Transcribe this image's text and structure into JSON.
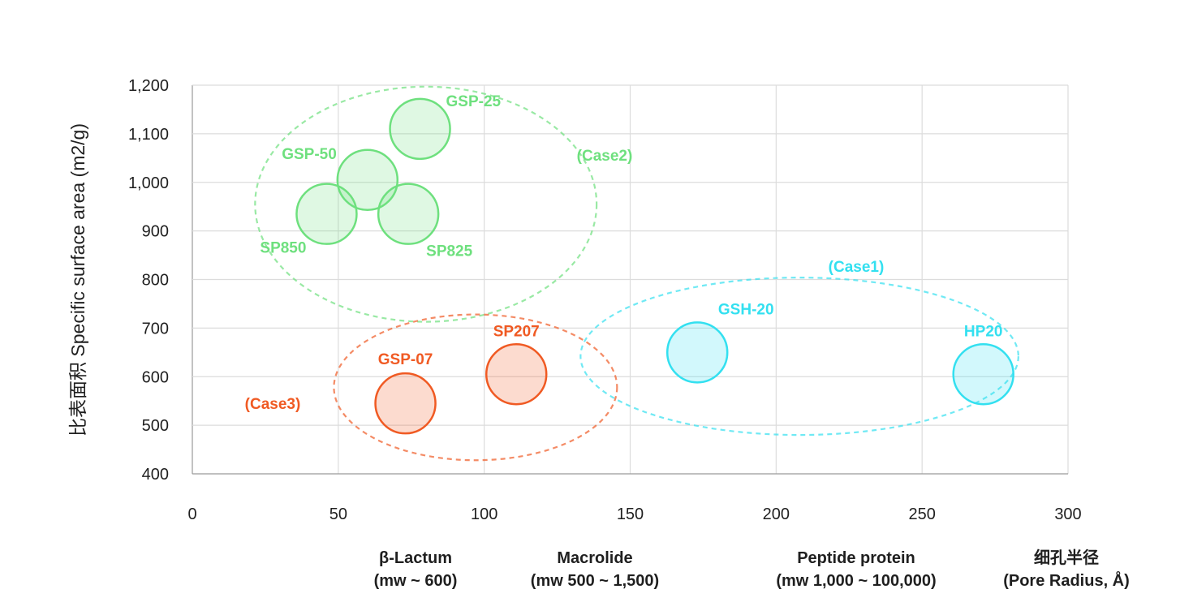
{
  "chart_data": {
    "type": "scatter",
    "ylabel": "比表面积  Specific surface area (m2/g)",
    "xlim": [
      0,
      300
    ],
    "ylim": [
      400,
      1200
    ],
    "x_ticks": [
      "0",
      "50",
      "100",
      "150",
      "200",
      "250",
      "300"
    ],
    "y_ticks": [
      "400",
      "500",
      "600",
      "700",
      "800",
      "900",
      "1,000",
      "1,100",
      "1,200"
    ],
    "grid": true,
    "colors": {
      "case1": "#33e0f0",
      "case2": "#6ee07e",
      "case3": "#f05a23"
    },
    "points": [
      {
        "name": "GSP-25",
        "x": 78,
        "y": 1110,
        "group": "case2"
      },
      {
        "name": "GSP-50",
        "x": 60,
        "y": 1005,
        "group": "case2"
      },
      {
        "name": "SP850",
        "x": 46,
        "y": 935,
        "group": "case2"
      },
      {
        "name": "SP825",
        "x": 74,
        "y": 935,
        "group": "case2"
      },
      {
        "name": "GSP-07",
        "x": 73,
        "y": 545,
        "group": "case3"
      },
      {
        "name": "SP207",
        "x": 111,
        "y": 605,
        "group": "case3"
      },
      {
        "name": "GSH-20",
        "x": 173,
        "y": 650,
        "group": "case1"
      },
      {
        "name": "HP20",
        "x": 271,
        "y": 605,
        "group": "case1"
      }
    ],
    "annotations": [
      {
        "text": "(Case2)",
        "group": "case2"
      },
      {
        "text": "(Case1)",
        "group": "case1"
      },
      {
        "text": "(Case3)",
        "group": "case3"
      }
    ],
    "x_categories": [
      {
        "line1": "β-Lactum",
        "line2": "(mw ~ 600)"
      },
      {
        "line1": "Macrolide",
        "line2": "(mw 500 ~ 1,500)"
      },
      {
        "line1": "Peptide protein",
        "line2": "(mw 1,000 ~ 100,000)"
      },
      {
        "line1": "细孔半径",
        "line2": "(Pore Radius, Å)"
      }
    ]
  }
}
